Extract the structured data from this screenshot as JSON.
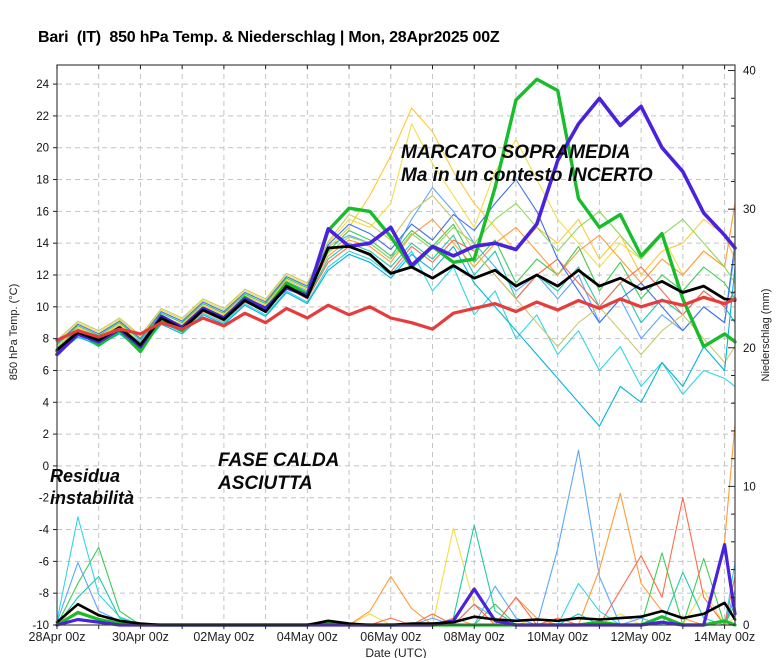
{
  "title": "Bari  (IT)  850 hPa Temp. & Niederschlag | Mon, 28Apr2025 00Z",
  "axis_labels": {
    "left": "850 hPa Temp. (°C)",
    "right": "Niederschlag (mm)",
    "bottom": "Date (UTC)"
  },
  "annotations": {
    "warm": {
      "line1": "MARCATO SOPRAMEDIA",
      "line2": "Ma in un contesto INCERTO"
    },
    "dry": {
      "line1": "FASE CALDA",
      "line2": "ASCIUTTA"
    },
    "residual": {
      "line1": "Residua",
      "line2": "instabilità"
    }
  },
  "chart_data": {
    "type": "line",
    "title": "Bari (IT) 850 hPa Temp. & Niederschlag | Mon, 28Apr2025 00Z",
    "x_unit": "time, 12-hour steps from 28Apr2025 00Z to 14May2025 06Z",
    "x_days_total": 16.25,
    "x_step_days": 0.5,
    "x_tick_days": [
      0,
      2,
      4,
      6,
      8,
      10,
      12,
      14,
      16
    ],
    "x_tick_labels": [
      "28Apr 00z",
      "30Apr 00z",
      "02May 00z",
      "04May 00z",
      "06May 00z",
      "08May 00z",
      "10May 00z",
      "12May 00z",
      "14May 00z"
    ],
    "temp_axis": {
      "min": -10,
      "max": 25.2,
      "tick_min": -10,
      "tick_max": 24,
      "tick_step": 2
    },
    "precip_axis": {
      "min": 0,
      "max": 40.4,
      "label_ticks": [
        0,
        10,
        20,
        30,
        40
      ],
      "minor_step": 2
    },
    "grid": {
      "color": "#c4c4c4",
      "dash": "5 4"
    },
    "frame_color": "#444444",
    "series_temp": [
      {
        "name": "operational-run",
        "color": "#17bd2a",
        "width": 3.4,
        "values": [
          7.2,
          8.5,
          7.6,
          8.5,
          7.2,
          9.2,
          8.5,
          9.9,
          9.2,
          10.6,
          9.8,
          11.5,
          10.8,
          14.8,
          16.2,
          16.0,
          14.4,
          12.5,
          13.8,
          12.8,
          13.0,
          17.5,
          23.0,
          24.3,
          23.6,
          16.8,
          15.0,
          15.8,
          13.2,
          14.6,
          10.5,
          7.5,
          8.3,
          7.8
        ]
      },
      {
        "name": "control-run",
        "color": "#4a22dd",
        "width": 3.6,
        "values": [
          7.0,
          8.3,
          7.8,
          8.6,
          7.5,
          9.4,
          8.7,
          9.9,
          9.3,
          10.5,
          9.9,
          11.2,
          10.7,
          14.9,
          13.8,
          14.0,
          15.0,
          12.6,
          13.8,
          13.2,
          13.8,
          14.0,
          13.6,
          15.2,
          19.2,
          21.5,
          23.1,
          21.4,
          22.6,
          20.0,
          18.5,
          15.9,
          14.5,
          13.7
        ]
      },
      {
        "name": "ensemble-mean",
        "color": "#000000",
        "width": 2.8,
        "values": [
          7.3,
          8.4,
          7.9,
          8.7,
          7.6,
          9.3,
          8.6,
          9.8,
          9.2,
          10.4,
          9.7,
          11.3,
          10.6,
          13.7,
          13.8,
          13.3,
          12.1,
          12.5,
          11.8,
          12.6,
          11.8,
          12.3,
          11.3,
          12.0,
          11.3,
          12.3,
          11.3,
          11.8,
          11.1,
          11.6,
          10.9,
          11.3,
          10.5,
          10.4
        ]
      },
      {
        "name": "climate-mean",
        "color": "#e63c3c",
        "width": 3.2,
        "values": [
          7.9,
          8.5,
          8.1,
          8.6,
          8.3,
          9.0,
          8.6,
          9.3,
          8.8,
          9.6,
          9.0,
          9.9,
          9.3,
          10.1,
          9.5,
          10.0,
          9.3,
          9.0,
          8.6,
          9.6,
          9.9,
          10.2,
          9.7,
          10.3,
          9.8,
          10.4,
          9.9,
          10.5,
          10.0,
          10.4,
          10.1,
          10.6,
          10.2,
          10.5
        ]
      }
    ],
    "members_temp": [
      {
        "name": "member-01",
        "color": "#2fd6e8",
        "values": [
          7.0,
          8.2,
          7.5,
          8.4,
          7.2,
          9.0,
          8.4,
          9.6,
          9.0,
          10.2,
          9.5,
          11.0,
          10.3,
          12.5,
          13.5,
          13.0,
          12.0,
          13.5,
          11.0,
          12.5,
          9.5,
          11.0,
          8.0,
          9.5,
          7.0,
          8.5,
          6.0,
          7.5,
          5.0,
          6.5,
          4.5,
          6.0,
          5.5,
          5.0
        ]
      },
      {
        "name": "member-02",
        "color": "#5aa7ff",
        "values": [
          7.4,
          8.6,
          8.0,
          8.8,
          7.8,
          9.5,
          8.8,
          10.0,
          9.4,
          10.6,
          10.0,
          11.6,
          11.0,
          13.8,
          14.5,
          14.0,
          13.0,
          15.5,
          17.5,
          16.0,
          14.0,
          12.5,
          11.0,
          12.0,
          10.5,
          12.0,
          9.0,
          10.5,
          8.0,
          9.5,
          8.5,
          10.0,
          9.0,
          13.5
        ]
      },
      {
        "name": "member-03",
        "color": "#1fc9a7",
        "values": [
          7.2,
          8.4,
          7.8,
          8.6,
          7.5,
          9.2,
          8.6,
          9.8,
          9.2,
          10.4,
          9.8,
          11.3,
          10.6,
          13.0,
          14.0,
          13.5,
          12.5,
          14.0,
          13.0,
          14.5,
          12.0,
          13.5,
          10.5,
          12.0,
          11.0,
          12.5,
          10.0,
          11.5,
          9.0,
          10.5,
          9.5,
          11.0,
          10.0,
          9.0
        ]
      },
      {
        "name": "member-04",
        "color": "#3ecb55",
        "values": [
          7.6,
          8.8,
          8.2,
          9.0,
          7.9,
          9.6,
          9.0,
          10.2,
          9.6,
          10.8,
          10.2,
          11.8,
          11.2,
          13.5,
          14.8,
          14.2,
          13.2,
          14.8,
          13.8,
          15.2,
          12.8,
          14.2,
          11.5,
          13.0,
          12.0,
          13.8,
          11.0,
          12.8,
          10.5,
          12.0,
          11.0,
          12.5,
          11.5,
          10.5
        ]
      },
      {
        "name": "member-05",
        "color": "#f2de4a",
        "values": [
          7.8,
          9.0,
          8.4,
          9.2,
          8.1,
          9.8,
          9.2,
          10.4,
          9.8,
          11.0,
          10.4,
          12.0,
          11.4,
          14.0,
          15.5,
          15.0,
          16.5,
          21.5,
          19.0,
          17.0,
          15.0,
          18.5,
          20.5,
          18.0,
          15.5,
          14.0,
          12.5,
          14.0,
          13.0,
          14.5,
          12.0,
          13.5,
          12.5,
          11.5
        ]
      },
      {
        "name": "member-06",
        "color": "#ffc834",
        "values": [
          7.5,
          8.7,
          8.1,
          8.9,
          7.7,
          9.4,
          8.9,
          10.1,
          9.5,
          10.7,
          10.1,
          11.7,
          11.1,
          13.7,
          15.0,
          17.0,
          19.5,
          22.5,
          21.0,
          18.5,
          16.5,
          15.0,
          13.5,
          15.0,
          14.0,
          15.5,
          13.0,
          14.5,
          12.0,
          13.5,
          14.0,
          15.5,
          14.5,
          13.0
        ]
      },
      {
        "name": "member-07",
        "color": "#ff9b38",
        "values": [
          7.3,
          8.5,
          7.9,
          8.7,
          7.6,
          9.3,
          8.7,
          9.9,
          9.3,
          10.5,
          9.9,
          11.5,
          10.8,
          13.2,
          14.2,
          13.8,
          12.8,
          14.5,
          15.5,
          14.0,
          12.5,
          14.0,
          15.0,
          13.5,
          12.0,
          13.5,
          14.5,
          13.0,
          11.5,
          13.0,
          12.0,
          13.5,
          12.5,
          16.5
        ]
      },
      {
        "name": "member-08",
        "color": "#ff6b4d",
        "values": [
          7.1,
          8.3,
          7.7,
          8.5,
          7.4,
          9.1,
          8.5,
          9.7,
          9.1,
          10.3,
          9.7,
          11.2,
          10.5,
          12.8,
          13.8,
          13.2,
          12.2,
          13.8,
          12.8,
          14.2,
          13.5,
          12.0,
          10.5,
          12.0,
          13.0,
          11.5,
          10.0,
          11.5,
          12.5,
          11.0,
          9.5,
          11.0,
          10.0,
          11.0
        ]
      },
      {
        "name": "member-09",
        "color": "#4070f0",
        "values": [
          7.7,
          8.9,
          8.3,
          9.1,
          8.0,
          9.7,
          9.1,
          10.3,
          9.7,
          10.9,
          10.3,
          11.9,
          11.3,
          13.9,
          15.2,
          14.6,
          13.6,
          15.2,
          14.2,
          15.8,
          14.8,
          16.5,
          18.0,
          16.0,
          13.0,
          11.0,
          9.0,
          10.5,
          11.5,
          10.0,
          8.5,
          10.0,
          9.0,
          14.0
        ]
      },
      {
        "name": "member-10",
        "color": "#8cd957",
        "values": [
          7.4,
          8.6,
          8.0,
          8.8,
          7.7,
          9.4,
          8.8,
          10.0,
          9.4,
          10.6,
          10.0,
          11.6,
          10.9,
          13.4,
          14.4,
          14.0,
          13.0,
          14.6,
          13.6,
          15.0,
          14.0,
          15.5,
          16.5,
          15.0,
          13.5,
          15.0,
          16.0,
          14.5,
          13.0,
          14.5,
          15.5,
          14.0,
          12.5,
          11.5
        ]
      },
      {
        "name": "member-11",
        "color": "#c9c96a",
        "values": [
          7.9,
          9.1,
          8.5,
          9.3,
          8.2,
          9.9,
          9.3,
          10.5,
          9.9,
          11.1,
          10.5,
          12.1,
          11.5,
          14.1,
          15.8,
          15.2,
          14.2,
          16.0,
          17.0,
          15.5,
          13.5,
          12.0,
          10.5,
          9.0,
          7.5,
          9.0,
          10.0,
          8.5,
          7.0,
          8.5,
          9.5,
          8.0,
          6.5,
          7.5
        ]
      },
      {
        "name": "member-12",
        "color": "#00b4d8",
        "values": [
          7.0,
          8.1,
          7.6,
          8.3,
          7.3,
          8.9,
          8.3,
          9.5,
          8.9,
          10.1,
          9.4,
          10.9,
          10.2,
          12.3,
          13.3,
          12.8,
          11.8,
          13.3,
          12.3,
          13.8,
          11.5,
          10.0,
          8.5,
          7.0,
          5.5,
          4.0,
          2.5,
          5.0,
          4.0,
          6.5,
          5.0,
          7.5,
          6.0,
          12.5
        ]
      }
    ],
    "series_precip": [
      {
        "name": "operational-precip",
        "color": "#17bd2a",
        "width": 3.2,
        "values": [
          0,
          0.9,
          0.4,
          0.1,
          0,
          0,
          0,
          0,
          0,
          0,
          0,
          0,
          0,
          0.2,
          0,
          0,
          0,
          0,
          0,
          0,
          0,
          0,
          0,
          0,
          0,
          0,
          0.2,
          0,
          0,
          0.6,
          0,
          0,
          0.3,
          0
        ]
      },
      {
        "name": "control-precip",
        "color": "#4a22dd",
        "width": 3.2,
        "values": [
          0,
          0.4,
          0.2,
          0,
          0,
          0,
          0,
          0,
          0,
          0,
          0,
          0,
          0,
          0,
          0,
          0,
          0,
          0,
          0,
          0.3,
          2.6,
          0.3,
          0,
          0,
          0,
          0,
          0,
          0,
          0,
          0.2,
          0,
          0,
          5.8,
          0.8
        ]
      },
      {
        "name": "ensemble-mean-precip",
        "color": "#000000",
        "width": 2.6,
        "values": [
          0.2,
          1.5,
          0.7,
          0.3,
          0.1,
          0,
          0,
          0,
          0,
          0,
          0,
          0,
          0,
          0.3,
          0.1,
          0,
          0,
          0.1,
          0.1,
          0.2,
          0.6,
          0.4,
          0.3,
          0.4,
          0.3,
          0.5,
          0.4,
          0.5,
          0.6,
          1.0,
          0.5,
          0.8,
          1.6,
          0.4
        ]
      }
    ],
    "members_precip": [
      {
        "name": "precip-member-1",
        "color": "#2fd6e8",
        "values": [
          0.3,
          7.8,
          2.2,
          0.6,
          0,
          0,
          0,
          0,
          0,
          0,
          0,
          0,
          0,
          0,
          0,
          0,
          0,
          0,
          0,
          0,
          1.5,
          0.5,
          0,
          0,
          0,
          3.0,
          1.0,
          0,
          0,
          0,
          0,
          0,
          0,
          4.5
        ]
      },
      {
        "name": "precip-member-2",
        "color": "#3ecb55",
        "values": [
          0,
          3.0,
          5.6,
          1.0,
          0,
          0,
          0,
          0,
          0,
          0,
          0,
          0,
          0,
          0,
          0,
          0,
          0,
          0,
          0,
          0,
          0,
          1.5,
          0,
          0,
          0,
          0,
          0,
          0,
          0,
          5.2,
          0,
          4.8,
          0,
          1.5
        ]
      },
      {
        "name": "precip-member-3",
        "color": "#f2de4a",
        "values": [
          0,
          1.0,
          0.5,
          0,
          0,
          0,
          0,
          0,
          0,
          0,
          0,
          0,
          0,
          0,
          0,
          0.8,
          0,
          0,
          0,
          7.0,
          1.5,
          0,
          0,
          0.5,
          0,
          0,
          0,
          0.8,
          0,
          0,
          0,
          2.5,
          0,
          0.5
        ]
      },
      {
        "name": "precip-member-4",
        "color": "#1fc9a7",
        "values": [
          0,
          2.0,
          3.5,
          0.5,
          0,
          0,
          0,
          0,
          0,
          0,
          0,
          0,
          0,
          0,
          0,
          0,
          0,
          0,
          0,
          0.5,
          7.2,
          1.0,
          0,
          0,
          0,
          0.8,
          0,
          0,
          0,
          0,
          3.8,
          0.5,
          0,
          2.0
        ]
      },
      {
        "name": "precip-member-5",
        "color": "#5aa7ff",
        "values": [
          0.2,
          4.5,
          1.0,
          0.3,
          0,
          0,
          0,
          0,
          0,
          0,
          0,
          0,
          0,
          0,
          0,
          0,
          0,
          0,
          0.5,
          0,
          0,
          2.8,
          0.5,
          0,
          5.5,
          12.6,
          3.5,
          0,
          0.5,
          0,
          0,
          0,
          0,
          2.5
        ]
      },
      {
        "name": "precip-member-6",
        "color": "#ff9b38",
        "values": [
          0,
          1.5,
          0.8,
          0,
          0,
          0,
          0,
          0,
          0,
          0,
          0,
          0,
          0,
          0,
          0,
          1.0,
          3.5,
          1.2,
          0,
          0.5,
          0,
          0,
          2.0,
          0.5,
          0,
          0,
          4.0,
          9.5,
          3.0,
          1.0,
          0.5,
          0,
          6.0,
          14.5
        ]
      },
      {
        "name": "precip-member-7",
        "color": "#ff6b4d",
        "values": [
          0,
          0.8,
          0.4,
          0,
          0,
          0,
          0,
          0,
          0,
          0,
          0,
          0,
          0,
          0,
          0,
          0,
          0.5,
          0,
          0.8,
          0,
          1.5,
          0,
          2.0,
          0,
          0.5,
          0,
          0,
          2.5,
          5.0,
          2.0,
          9.2,
          2.0,
          0,
          3.5
        ]
      }
    ]
  }
}
